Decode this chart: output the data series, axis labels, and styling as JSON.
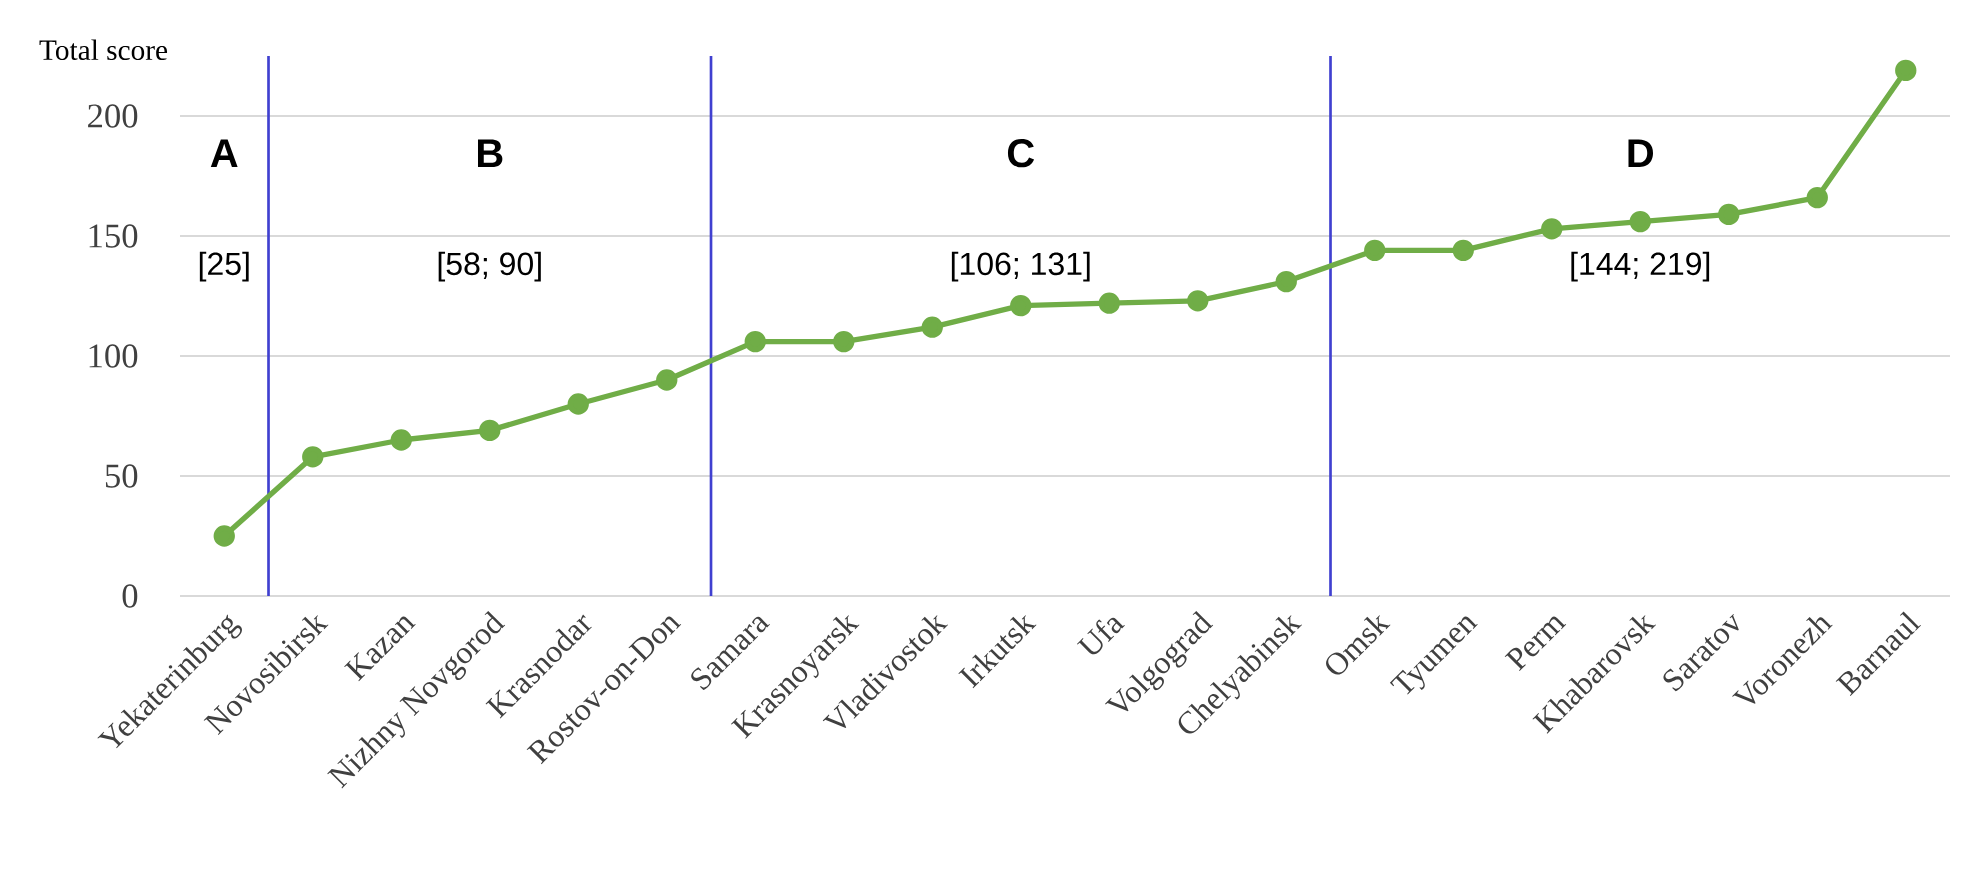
{
  "chart_data": {
    "type": "line",
    "ylabel": "Total score",
    "categories": [
      "Yekaterinburg",
      "Novosibirsk",
      "Kazan",
      "Nizhny Novgorod",
      "Krasnodar",
      "Rostov-on-Don",
      "Samara",
      "Krasnoyarsk",
      "Vladivostok",
      "Irkutsk",
      "Ufa",
      "Volgograd",
      "Chelyabinsk",
      "Omsk",
      "Tyumen",
      "Perm",
      "Khabarovsk",
      "Saratov",
      "Voronezh",
      "Barnaul"
    ],
    "series": [
      {
        "color": "#70ad47",
        "values": [
          25,
          58,
          65,
          69,
          80,
          90,
          106,
          106,
          112,
          121,
          122,
          123,
          131,
          144,
          144,
          153,
          156,
          159,
          166,
          219
        ]
      }
    ],
    "ylim": [
      0,
      225
    ],
    "yticks": [
      0,
      50,
      100,
      150,
      200
    ],
    "grid": "y",
    "marker": "circle",
    "line_style": "solid",
    "annotations": [
      "A",
      "[25]",
      "B",
      "[58; 90]",
      "C",
      "[106; 131]",
      "D",
      "[144; 219]"
    ]
  }
}
